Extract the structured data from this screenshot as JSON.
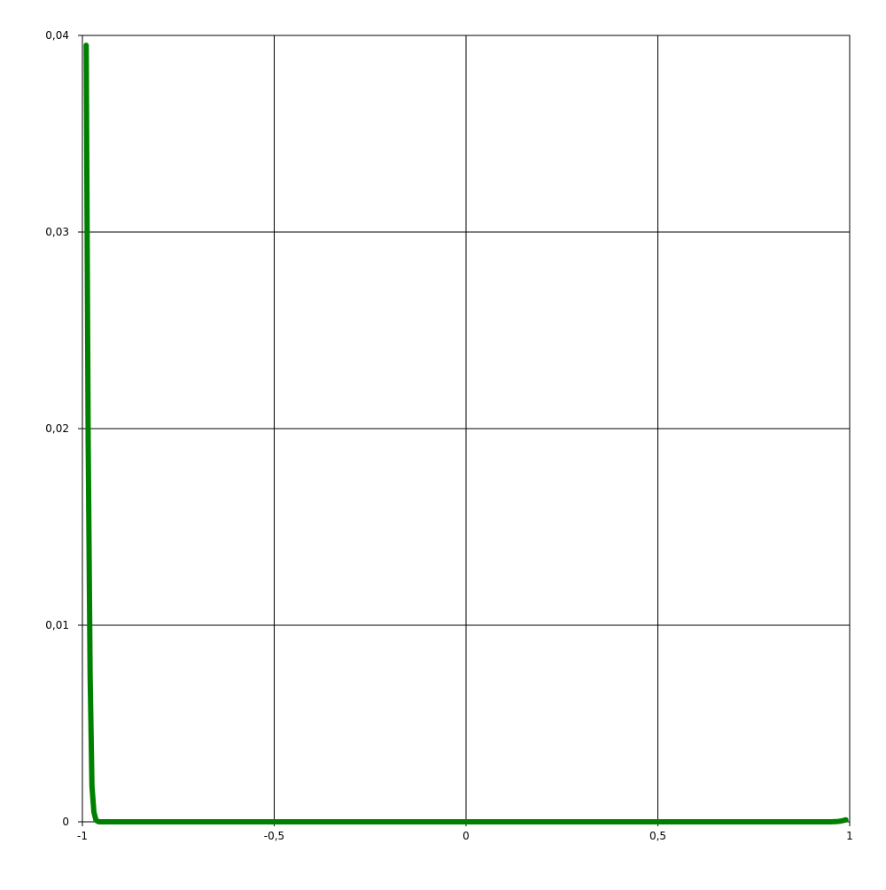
{
  "chart_data": {
    "type": "line",
    "title": "",
    "xlabel": "",
    "ylabel": "",
    "xlim": [
      -1,
      1
    ],
    "ylim": [
      0,
      0.04
    ],
    "grid": true,
    "x_ticks": [
      {
        "value": -1,
        "label": "-1"
      },
      {
        "value": -0.5,
        "label": "-0,5"
      },
      {
        "value": 0,
        "label": "0"
      },
      {
        "value": 0.5,
        "label": "0,5"
      },
      {
        "value": 1,
        "label": "1"
      }
    ],
    "y_ticks": [
      {
        "value": 0,
        "label": "0"
      },
      {
        "value": 0.01,
        "label": "0,01"
      },
      {
        "value": 0.02,
        "label": "0,02"
      },
      {
        "value": 0.03,
        "label": "0,03"
      },
      {
        "value": 0.04,
        "label": "0,04"
      }
    ],
    "series": [
      {
        "color": "#008000",
        "x": [
          -0.99,
          -0.985,
          -0.98,
          -0.975,
          -0.97,
          -0.965,
          -0.96,
          -0.955,
          -0.95,
          -0.94,
          -0.9,
          -0.8,
          -0.6,
          -0.4,
          -0.2,
          0,
          0.2,
          0.4,
          0.6,
          0.8,
          0.9,
          0.95,
          0.97,
          0.98,
          0.99
        ],
        "y": [
          0.0395,
          0.0195,
          0.0075,
          0.0018,
          0.0005,
          0.0001,
          2e-05,
          0,
          0,
          0,
          0,
          0,
          0,
          0,
          0,
          0,
          0,
          0,
          0,
          0,
          0,
          0,
          2e-05,
          5e-05,
          0.0001
        ]
      }
    ]
  }
}
